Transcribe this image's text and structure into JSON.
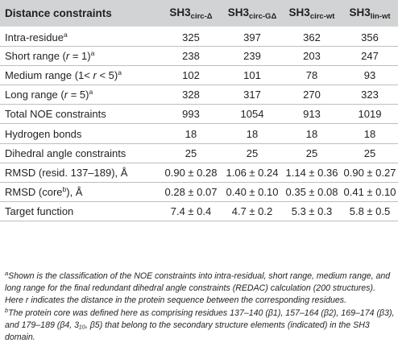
{
  "header": {
    "col0": "Distance constraints",
    "cols": [
      {
        "base": "SH3",
        "sub": "circ-Δ"
      },
      {
        "base": "SH3",
        "sub": "circ-GΔ"
      },
      {
        "base": "SH3",
        "sub": "circ-wt"
      },
      {
        "base": "SH3",
        "sub": "lin-wt"
      }
    ]
  },
  "rows": [
    {
      "label_pre": "Intra-residue",
      "label_sup": "a",
      "values": [
        "325",
        "397",
        "362",
        "356"
      ]
    },
    {
      "label_pre": "Short range (",
      "label_italic": "r",
      "label_post": " = 1)",
      "label_sup": "a",
      "values": [
        "238",
        "239",
        "203",
        "247"
      ]
    },
    {
      "label_pre": "Medium range (1< ",
      "label_italic": "r",
      "label_post": " < 5)",
      "label_sup": "a",
      "values": [
        "102",
        "101",
        "78",
        "93"
      ]
    },
    {
      "label_pre": "Long range (",
      "label_italic": "r",
      "label_post": " = 5)",
      "label_sup": "a",
      "values": [
        "328",
        "317",
        "270",
        "323"
      ]
    },
    {
      "label_pre": "Total NOE constraints",
      "values": [
        "993",
        "1054",
        "913",
        "1019"
      ]
    },
    {
      "label_pre": "Hydrogen bonds",
      "values": [
        "18",
        "18",
        "18",
        "18"
      ]
    },
    {
      "label_pre": "Dihedral angle constraints",
      "values": [
        "25",
        "25",
        "25",
        "25"
      ]
    },
    {
      "label_pre": "RMSD (resid. 137–189), Å",
      "values": [
        "0.90 ± 0.28",
        "1.06 ± 0.24",
        "1.14 ± 0.36",
        "0.90 ± 0.27"
      ]
    },
    {
      "label_pre": "RMSD (core",
      "label_sup": "b",
      "label_post2": "), Å",
      "values": [
        "0.28 ± 0.07",
        "0.40 ± 0.10",
        "0.35 ± 0.08",
        "0.41 ± 0.10"
      ]
    },
    {
      "label_pre": "Target function",
      "values": [
        "7.4 ± 0.4",
        "4.7 ± 0.2",
        "5.3 ± 0.3",
        "5.8 ± 0.5"
      ]
    }
  ],
  "footnotes": [
    {
      "mark": "a",
      "text": "Shown is the classification of the NOE constraints into intra-residual, short range, medium range, and long range for the final redundant dihedral angle constraints (REDAC) calculation (200 structures). Here r indicates the distance in the protein sequence between the corresponding residues."
    },
    {
      "mark": "b",
      "text": "The protein core was defined here as comprising residues 137–140 (β1), 157–164 (β2), 169–174 (β3), and 179–189 (β4, 3₁₀, β5) that belong to the secondary structure elements (indicated) in the SH3 domain."
    }
  ]
}
